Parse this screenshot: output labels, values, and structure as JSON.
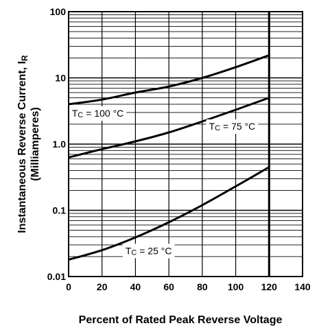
{
  "chart_data": {
    "type": "line",
    "x_scale": "linear",
    "y_scale": "log",
    "xlim": [
      0,
      140
    ],
    "ylim": [
      0.01,
      100
    ],
    "x_ticks": [
      "0",
      "20",
      "40",
      "60",
      "80",
      "100",
      "120",
      "140"
    ],
    "y_ticks": [
      {
        "value": 0.01,
        "label": "0.01"
      },
      {
        "value": 0.1,
        "label": "0.1"
      },
      {
        "value": 1,
        "label": "1.0"
      },
      {
        "value": 10,
        "label": "10"
      },
      {
        "value": 100,
        "label": "100"
      }
    ],
    "xlabel": "Percent of Rated Peak Reverse Voltage",
    "ylabel_line1": "Instantaneous Reverse Current, I",
    "ylabel_subscript": "R",
    "ylabel_line2": "(Milliamperes)",
    "grid": true,
    "series": [
      {
        "name": "Tc = 100 °C",
        "label_main": "T",
        "label_sub": "C",
        "label_rest": " = 100 °C",
        "label_at": {
          "x": 2,
          "y": 2.6
        },
        "x": [
          0,
          20,
          40,
          60,
          80,
          100,
          120
        ],
        "y": [
          4.0,
          4.7,
          6.0,
          7.4,
          10.0,
          14.5,
          22.0
        ]
      },
      {
        "name": "Tc = 75 °C",
        "label_main": "T",
        "label_sub": "C",
        "label_rest": " = 75 °C",
        "label_at": {
          "x": 84,
          "y": 1.65
        },
        "x": [
          0,
          20,
          40,
          60,
          80,
          100,
          120
        ],
        "y": [
          0.63,
          0.84,
          1.1,
          1.5,
          2.2,
          3.3,
          5.0
        ]
      },
      {
        "name": "Tc = 25 °C",
        "label_main": "T",
        "label_sub": "C",
        "label_rest": " = 25 °C",
        "label_at": {
          "x": 34,
          "y": 0.0218
        },
        "x": [
          0,
          20,
          40,
          60,
          80,
          100,
          120
        ],
        "y": [
          0.018,
          0.025,
          0.039,
          0.066,
          0.12,
          0.23,
          0.45
        ]
      }
    ]
  }
}
